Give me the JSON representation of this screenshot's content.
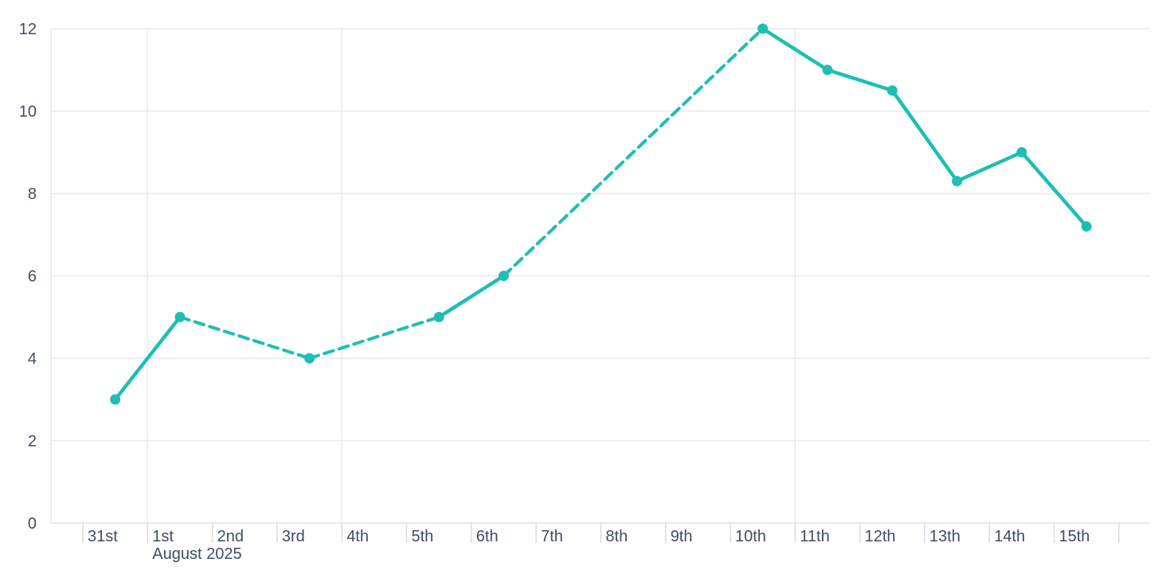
{
  "chart_data": {
    "type": "line",
    "title": "",
    "xlabel": "",
    "ylabel": "",
    "x_axis": {
      "tick_labels": [
        "31st",
        "1st",
        "2nd",
        "3rd",
        "4th",
        "5th",
        "6th",
        "7th",
        "8th",
        "9th",
        "10th",
        "11th",
        "12th",
        "13th",
        "14th",
        "15th"
      ],
      "secondary_label": "August 2025",
      "secondary_label_anchor": "1st",
      "gridline_labels": [
        "1st",
        "4th",
        "11th"
      ]
    },
    "y_axis": {
      "min": 0,
      "max": 12,
      "ticks": [
        0,
        2,
        4,
        6,
        8,
        10,
        12
      ]
    },
    "grid": {
      "horizontal": true,
      "vertical": "weekly"
    },
    "legend": "none",
    "series": [
      {
        "name": "series-1",
        "color": "#1ebeb4",
        "points": [
          {
            "x": "31st",
            "day_index": 0,
            "value": 3
          },
          {
            "x": "1st",
            "day_index": 1,
            "value": 5
          },
          {
            "x": "3rd",
            "day_index": 3,
            "value": 4
          },
          {
            "x": "5th",
            "day_index": 5,
            "value": 5
          },
          {
            "x": "6th",
            "day_index": 6,
            "value": 6
          },
          {
            "x": "10th",
            "day_index": 10,
            "value": 12
          },
          {
            "x": "11th",
            "day_index": 11,
            "value": 11
          },
          {
            "x": "12th",
            "day_index": 12,
            "value": 10.5
          },
          {
            "x": "13th",
            "day_index": 13,
            "value": 8.3
          },
          {
            "x": "14th",
            "day_index": 14,
            "value": 9
          },
          {
            "x": "15th",
            "day_index": 15,
            "value": 7.2
          }
        ],
        "segment_styles": [
          "solid",
          "dashed",
          "dashed",
          "solid",
          "dashed",
          "solid",
          "solid",
          "solid",
          "solid",
          "solid"
        ]
      }
    ],
    "colors": {
      "background": "#ffffff",
      "series": "#1ebeb4",
      "axis_label": "#3e4c64",
      "gridline": "#e8e9f2",
      "axis_line": "#e4e6ef",
      "tick": "#d8dbe6"
    }
  }
}
